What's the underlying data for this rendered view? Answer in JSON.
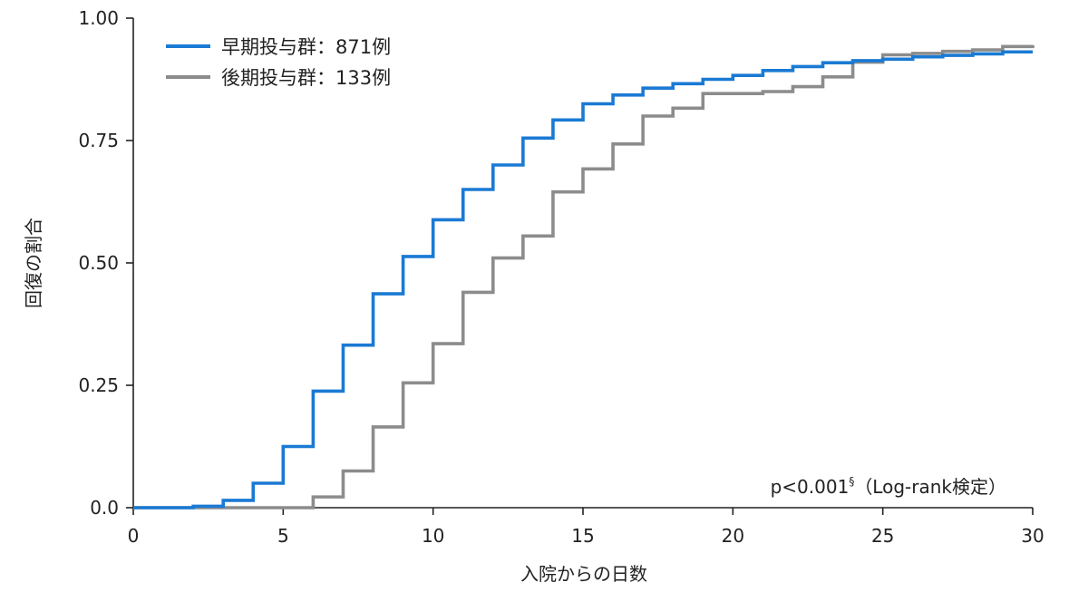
{
  "chart_data": {
    "type": "line",
    "step": true,
    "xlabel": "入院からの日数",
    "ylabel": "回復の割合",
    "xlim": [
      0,
      30
    ],
    "ylim": [
      0,
      1
    ],
    "x_ticks": [
      "0",
      "5",
      "10",
      "15",
      "20",
      "25",
      "30"
    ],
    "y_ticks": [
      "0.0",
      "0.25",
      "0.50",
      "0.75",
      "1.00"
    ],
    "grid": false,
    "legend_position": "top-left",
    "series": [
      {
        "name": "早期投与群：871例",
        "color": "#1a7ad4",
        "x": [
          0,
          2,
          3,
          4,
          5,
          6,
          7,
          8,
          9,
          10,
          11,
          12,
          13,
          14,
          15,
          16,
          17,
          18,
          19,
          20,
          21,
          22,
          23,
          24,
          25,
          26,
          27,
          28,
          29,
          30
        ],
        "y": [
          0,
          0.003,
          0.015,
          0.05,
          0.125,
          0.238,
          0.332,
          0.437,
          0.513,
          0.588,
          0.65,
          0.7,
          0.755,
          0.792,
          0.825,
          0.843,
          0.857,
          0.866,
          0.875,
          0.883,
          0.893,
          0.901,
          0.909,
          0.913,
          0.916,
          0.921,
          0.924,
          0.927,
          0.931,
          0.931
        ]
      },
      {
        "name": "後期投与群：133例",
        "color": "#8c8c8c",
        "x": [
          0,
          6,
          7,
          8,
          9,
          10,
          11,
          12,
          13,
          14,
          15,
          16,
          17,
          18,
          19,
          20,
          21,
          22,
          23,
          24,
          25,
          26,
          27,
          28,
          29,
          30
        ],
        "y": [
          0,
          0.022,
          0.075,
          0.165,
          0.255,
          0.335,
          0.44,
          0.51,
          0.555,
          0.645,
          0.692,
          0.743,
          0.8,
          0.816,
          0.846,
          0.846,
          0.85,
          0.86,
          0.88,
          0.91,
          0.925,
          0.928,
          0.932,
          0.935,
          0.942,
          0.945
        ]
      }
    ],
    "annotation": {
      "main": "p<0.001",
      "superscript": "§",
      "suffix": "（Log-rank検定）"
    }
  }
}
